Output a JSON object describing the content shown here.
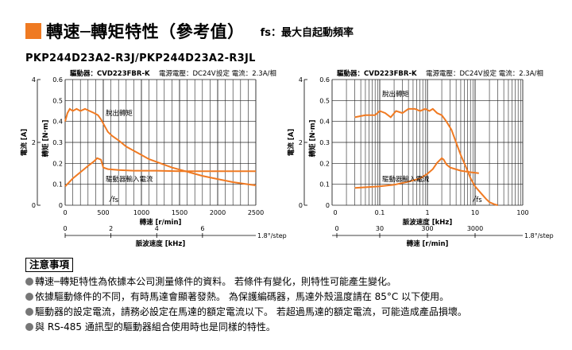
{
  "title": {
    "main": "轉速─轉矩特性（參考值）",
    "note": "fs：最大自起動頻率"
  },
  "model": "PKP244D23A2-R3J/PKP244D23A2-R3JL",
  "colors": {
    "accent": "#EF7A22",
    "curve": "#F07A22",
    "grid": "#222222",
    "axis": "#000000"
  },
  "chart_data": [
    {
      "type": "line",
      "header": {
        "driver": "驅動器：CVD223FBR-K",
        "voltage": "電源電壓：DC24V",
        "current": "設定 電流：2.3A/相"
      },
      "xscale": "linear",
      "xlim": [
        0,
        2500
      ],
      "x_ticks": [
        "0",
        "500",
        "1000",
        "1500",
        "2000",
        "2500"
      ],
      "xlabel": "轉速 [r/min]",
      "y_torque": {
        "label": "轉矩 [N·m]",
        "lim": [
          0,
          0.6
        ],
        "ticks": [
          "0",
          "0.1",
          "0.2",
          "0.3",
          "0.4",
          "0.5",
          "0.6"
        ]
      },
      "y_current": {
        "label": "電流 [A]",
        "lim": [
          0,
          4
        ],
        "ticks": [
          "0",
          "2",
          "4"
        ]
      },
      "grid": true,
      "series": [
        {
          "name": "脫出轉矩",
          "x": [
            0,
            30,
            60,
            100,
            150,
            200,
            260,
            320,
            380,
            430,
            470,
            500,
            560,
            620,
            700,
            800,
            900,
            1000,
            1100,
            1250,
            1400,
            1600,
            1800,
            2000,
            2200,
            2400,
            2500
          ],
          "y": [
            0.4,
            0.44,
            0.46,
            0.45,
            0.46,
            0.45,
            0.46,
            0.45,
            0.44,
            0.43,
            0.41,
            0.39,
            0.35,
            0.33,
            0.31,
            0.28,
            0.26,
            0.24,
            0.22,
            0.2,
            0.18,
            0.16,
            0.14,
            0.125,
            0.11,
            0.1,
            0.095
          ]
        },
        {
          "name": "驅動器輸入電流",
          "x": [
            0,
            100,
            200,
            300,
            380,
            420,
            470,
            500,
            560,
            700,
            900,
            1200,
            1500,
            1800,
            2100,
            2500
          ],
          "y": [
            0.6,
            0.85,
            1.05,
            1.25,
            1.4,
            1.5,
            1.45,
            1.2,
            1.15,
            1.12,
            1.1,
            1.1,
            1.08,
            1.08,
            1.08,
            1.08
          ]
        }
      ],
      "annotations": {
        "pullout": "脫出轉矩",
        "input_current": "驅動器輸入電流",
        "fs": "fs",
        "fs_x": 580
      },
      "secondary_axis": {
        "label": "脈波速度 [kHz]",
        "ticks": [
          "0",
          "2",
          "4",
          "6"
        ],
        "tick_values": [
          0,
          2,
          4,
          6
        ],
        "end_note": "1.8°/step"
      }
    },
    {
      "type": "line",
      "header": {
        "driver": "驅動器：CVD223FBR-K",
        "voltage": "電源電壓：DC24V",
        "current": "設定 電流：2.3A/相"
      },
      "xscale": "log",
      "xlim": [
        0.01,
        100
      ],
      "x_ticks": [
        "0",
        "0.1",
        "1",
        "10",
        "100"
      ],
      "x_tick_values": [
        0.1,
        1,
        10,
        100
      ],
      "xlabel": "脈波速度 [kHz]",
      "y_torque": {
        "label": "轉矩 [N·m]",
        "lim": [
          0,
          0.6
        ],
        "ticks": [
          "0",
          "0.1",
          "0.2",
          "0.3",
          "0.4",
          "0.5",
          "0.6"
        ]
      },
      "y_current": {
        "label": "電流 [A]",
        "lim": [
          0,
          4
        ],
        "ticks": [
          "0",
          "2",
          "4"
        ]
      },
      "grid": true,
      "series": [
        {
          "name": "脫出轉矩",
          "x": [
            0.03,
            0.05,
            0.08,
            0.1,
            0.13,
            0.17,
            0.22,
            0.3,
            0.4,
            0.55,
            0.7,
            0.9,
            1.1,
            1.3,
            1.6,
            2,
            2.5,
            3.2,
            4,
            5,
            6.5,
            8,
            10,
            13,
            17,
            20,
            25,
            30
          ],
          "y": [
            0.42,
            0.43,
            0.43,
            0.45,
            0.44,
            0.42,
            0.45,
            0.44,
            0.46,
            0.46,
            0.45,
            0.46,
            0.45,
            0.46,
            0.44,
            0.43,
            0.4,
            0.36,
            0.3,
            0.24,
            0.18,
            0.13,
            0.09,
            0.06,
            0.03,
            0.015,
            0.005,
            0.0
          ]
        },
        {
          "name": "驅動器輸入電流",
          "x": [
            0.03,
            0.1,
            0.2,
            0.4,
            0.7,
            1,
            1.3,
            1.6,
            2,
            2.2,
            2.5,
            3,
            5,
            8,
            12
          ],
          "y": [
            0.55,
            0.6,
            0.65,
            0.75,
            0.85,
            1.0,
            1.15,
            1.35,
            1.5,
            1.45,
            1.3,
            1.2,
            1.1,
            1.05,
            1.02
          ]
        }
      ],
      "annotations": {
        "pullout": "脫出轉矩",
        "input_current": "驅動器輸入電流",
        "fs": "fs",
        "fs_x": 9
      },
      "secondary_axis": {
        "label": "轉速 [r/min]",
        "ticks": [
          "0",
          "30",
          "300",
          "3000"
        ],
        "tick_values": [
          0.1,
          1,
          10
        ],
        "end_note": "1.8°/step"
      }
    }
  ],
  "notes": {
    "heading": "注意事項",
    "items": [
      "轉速─轉矩特性為依據本公司測量條件的資料。 若條件有變化，則特性可能產生變化。",
      "依據驅動條件的不同，有時馬達會顯著發熱。 為保護編碼器，馬達外殼溫度請在 85°C 以下使用。",
      "驅動器的設定電流，請務必設定在馬達的額定電流以下。 若超過馬達的額定電流，可能造成產品損壞。",
      "與 RS-485 通訊型的驅動器組合使用時也是同樣的特性。"
    ]
  }
}
